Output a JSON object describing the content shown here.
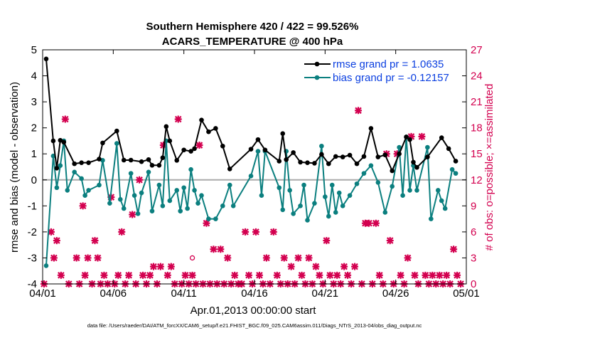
{
  "chart_data": {
    "type": "scatter",
    "title": "Southern Hemisphere 420 / 422 = 99.526%",
    "subtitle": "ACARS_TEMPERATURE @ 400 hPa",
    "xlabel": "Apr.01,2013 00:00:00 start",
    "ylabel": "rmse and bias (model - observation)",
    "y2label": "# of obs: o=possible; ×=assimilated",
    "footnote": "data file: /Users/raeder/DAI/ATM_forcXX/CAM6_setup/f.e21.FHIST_BGC.f09_025.CAM6assim.011/Diags_NTrS_2013-04/obs_diag_output.nc",
    "xlim": [
      0,
      30
    ],
    "ylim": [
      -4,
      5
    ],
    "y2lim": [
      0,
      27
    ],
    "x_ticks": [
      0,
      5,
      10,
      15,
      20,
      25,
      30
    ],
    "x_tick_labels": [
      "04/01",
      "04/06",
      "04/11",
      "04/16",
      "04/21",
      "04/26",
      "05/01"
    ],
    "y_ticks": [
      -4,
      -3,
      -2,
      -1,
      0,
      1,
      2,
      3,
      4,
      5
    ],
    "y_tick_labels": [
      "-4",
      "-3",
      "-2",
      "-1",
      "0",
      "1",
      "2",
      "3",
      "4",
      "5"
    ],
    "y2_ticks": [
      0,
      3,
      6,
      9,
      12,
      15,
      18,
      21,
      24,
      27
    ],
    "y2_tick_labels": [
      "0",
      "3",
      "6",
      "9",
      "12",
      "15",
      "18",
      "21",
      "24",
      "27"
    ],
    "legend": {
      "position": "top-right",
      "entries": [
        "rmse grand pr = 1.0635",
        "bias grand pr = -0.12157"
      ]
    },
    "colors": {
      "rmse": "#000000",
      "bias": "#0b7f7f",
      "obs": "#d3004f",
      "zero_line": "#aaaaaa",
      "legend_text": "#0b3fe0"
    },
    "series": [
      {
        "name": "rmse",
        "axis": "left",
        "values": [
          [
            0.25,
            4.65
          ],
          [
            0.75,
            1.5
          ],
          [
            1.0,
            0.45
          ],
          [
            1.25,
            1.52
          ],
          [
            1.5,
            1.45
          ],
          [
            2.25,
            0.62
          ],
          [
            2.75,
            0.66
          ],
          [
            3.25,
            0.66
          ],
          [
            4.0,
            0.8
          ],
          [
            4.25,
            1.42
          ],
          [
            5.25,
            1.88
          ],
          [
            5.75,
            0.76
          ],
          [
            6.25,
            0.76
          ],
          [
            7.0,
            0.7
          ],
          [
            7.5,
            0.78
          ],
          [
            7.75,
            0.56
          ],
          [
            8.25,
            0.56
          ],
          [
            8.5,
            0.85
          ],
          [
            8.75,
            2.05
          ],
          [
            9.0,
            1.5
          ],
          [
            9.5,
            0.75
          ],
          [
            10.0,
            1.15
          ],
          [
            10.5,
            1.1
          ],
          [
            10.75,
            1.2
          ],
          [
            11.25,
            2.3
          ],
          [
            11.75,
            1.85
          ],
          [
            12.25,
            1.98
          ],
          [
            12.75,
            1.3
          ],
          [
            13.25,
            0.42
          ],
          [
            14.75,
            1.18
          ],
          [
            15.25,
            1.55
          ],
          [
            15.75,
            1.15
          ],
          [
            16.75,
            0.72
          ],
          [
            17.0,
            1.78
          ],
          [
            17.25,
            0.78
          ],
          [
            17.75,
            1.05
          ],
          [
            18.25,
            0.68
          ],
          [
            18.75,
            0.66
          ],
          [
            19.25,
            0.64
          ],
          [
            19.75,
            0.98
          ],
          [
            20.25,
            0.62
          ],
          [
            20.75,
            0.9
          ],
          [
            21.25,
            0.88
          ],
          [
            21.75,
            0.95
          ],
          [
            22.25,
            0.62
          ],
          [
            22.75,
            0.9
          ],
          [
            23.25,
            1.98
          ],
          [
            23.75,
            0.88
          ],
          [
            24.25,
            0.96
          ],
          [
            24.75,
            0.35
          ],
          [
            25.25,
            1.0
          ],
          [
            25.75,
            1.65
          ],
          [
            26.0,
            1.55
          ],
          [
            26.25,
            0.68
          ],
          [
            26.5,
            0.48
          ],
          [
            27.25,
            0.88
          ],
          [
            28.25,
            1.62
          ],
          [
            28.75,
            1.2
          ],
          [
            29.25,
            0.72
          ]
        ]
      },
      {
        "name": "bias",
        "axis": "left",
        "values": [
          [
            0.25,
            -3.3
          ],
          [
            0.75,
            0.92
          ],
          [
            1.0,
            -0.3
          ],
          [
            1.25,
            0.55
          ],
          [
            1.5,
            1.5
          ],
          [
            1.75,
            -0.4
          ],
          [
            2.25,
            0.3
          ],
          [
            2.75,
            0.05
          ],
          [
            3.0,
            -0.6
          ],
          [
            3.25,
            -0.4
          ],
          [
            4.0,
            -0.2
          ],
          [
            4.25,
            0.75
          ],
          [
            4.75,
            -0.9
          ],
          [
            5.25,
            1.4
          ],
          [
            5.5,
            -0.75
          ],
          [
            5.75,
            -1.1
          ],
          [
            6.25,
            0.25
          ],
          [
            6.5,
            -0.6
          ],
          [
            6.75,
            -1.3
          ],
          [
            7.0,
            -0.5
          ],
          [
            7.5,
            0.3
          ],
          [
            7.75,
            -1.2
          ],
          [
            8.25,
            -0.2
          ],
          [
            8.5,
            -1.0
          ],
          [
            8.75,
            1.5
          ],
          [
            9.0,
            -0.8
          ],
          [
            9.5,
            -0.4
          ],
          [
            9.75,
            -1.2
          ],
          [
            10.0,
            -0.3
          ],
          [
            10.25,
            -1.1
          ],
          [
            10.5,
            0.4
          ],
          [
            10.75,
            -0.4
          ],
          [
            11.0,
            -0.9
          ],
          [
            11.25,
            -0.6
          ],
          [
            11.75,
            -1.5
          ],
          [
            12.25,
            -1.5
          ],
          [
            12.75,
            -1.0
          ],
          [
            13.25,
            -0.2
          ],
          [
            13.5,
            -1.0
          ],
          [
            14.75,
            0.15
          ],
          [
            15.25,
            1.1
          ],
          [
            15.5,
            -0.6
          ],
          [
            15.75,
            1.1
          ],
          [
            16.75,
            -0.3
          ],
          [
            17.0,
            -1.15
          ],
          [
            17.25,
            1.1
          ],
          [
            17.5,
            -0.4
          ],
          [
            17.75,
            -1.3
          ],
          [
            18.25,
            -1.0
          ],
          [
            18.5,
            -0.2
          ],
          [
            18.75,
            -1.55
          ],
          [
            19.25,
            -0.9
          ],
          [
            19.75,
            1.3
          ],
          [
            20.0,
            -0.65
          ],
          [
            20.25,
            -1.4
          ],
          [
            20.5,
            -0.2
          ],
          [
            20.75,
            -1.25
          ],
          [
            21.0,
            -0.5
          ],
          [
            21.25,
            -1.0
          ],
          [
            21.75,
            -0.6
          ],
          [
            22.25,
            -0.15
          ],
          [
            22.75,
            0.25
          ],
          [
            23.25,
            0.55
          ],
          [
            23.75,
            -0.1
          ],
          [
            24.25,
            -1.25
          ],
          [
            24.75,
            -0.25
          ],
          [
            25.25,
            1.25
          ],
          [
            25.5,
            -0.6
          ],
          [
            25.75,
            1.65
          ],
          [
            26.0,
            -0.4
          ],
          [
            26.25,
            0.55
          ],
          [
            26.5,
            -0.4
          ],
          [
            27.25,
            1.25
          ],
          [
            27.5,
            -1.5
          ],
          [
            28.0,
            -0.4
          ],
          [
            28.25,
            -0.8
          ],
          [
            28.5,
            -1.1
          ],
          [
            29.0,
            0.4
          ],
          [
            29.25,
            0.25
          ]
        ]
      },
      {
        "name": "obs_assimilated",
        "axis": "right",
        "values": [
          [
            0.1,
            0
          ],
          [
            0.6,
            6
          ],
          [
            0.8,
            3
          ],
          [
            1.0,
            5
          ],
          [
            1.3,
            1
          ],
          [
            1.6,
            19
          ],
          [
            1.85,
            0
          ],
          [
            2.4,
            3
          ],
          [
            2.6,
            0
          ],
          [
            2.85,
            9
          ],
          [
            3.0,
            1
          ],
          [
            3.2,
            3
          ],
          [
            3.5,
            0
          ],
          [
            3.7,
            5
          ],
          [
            3.9,
            3
          ],
          [
            4.1,
            0
          ],
          [
            4.35,
            1
          ],
          [
            4.6,
            0
          ],
          [
            4.85,
            10
          ],
          [
            5.1,
            0
          ],
          [
            5.35,
            1
          ],
          [
            5.6,
            6
          ],
          [
            5.85,
            0
          ],
          [
            6.1,
            1
          ],
          [
            6.35,
            8
          ],
          [
            6.6,
            0
          ],
          [
            6.85,
            12
          ],
          [
            7.1,
            1
          ],
          [
            7.35,
            0
          ],
          [
            7.6,
            1
          ],
          [
            7.85,
            2
          ],
          [
            8.1,
            0
          ],
          [
            8.35,
            2
          ],
          [
            8.55,
            16
          ],
          [
            8.85,
            1
          ],
          [
            9.1,
            2
          ],
          [
            9.35,
            0
          ],
          [
            9.6,
            19
          ],
          [
            9.85,
            0
          ],
          [
            10.1,
            1
          ],
          [
            10.35,
            0
          ],
          [
            10.6,
            1
          ],
          [
            10.85,
            0
          ],
          [
            11.1,
            16
          ],
          [
            11.35,
            0
          ],
          [
            11.6,
            7
          ],
          [
            11.85,
            0
          ],
          [
            12.1,
            4
          ],
          [
            12.35,
            0
          ],
          [
            12.6,
            4
          ],
          [
            12.85,
            0
          ],
          [
            13.1,
            3
          ],
          [
            13.35,
            0
          ],
          [
            13.6,
            1
          ],
          [
            13.85,
            0
          ],
          [
            14.1,
            0
          ],
          [
            14.35,
            6
          ],
          [
            14.6,
            1
          ],
          [
            14.85,
            0
          ],
          [
            15.1,
            6
          ],
          [
            15.35,
            1
          ],
          [
            15.6,
            0
          ],
          [
            15.85,
            3
          ],
          [
            16.1,
            0
          ],
          [
            16.35,
            6
          ],
          [
            16.6,
            1
          ],
          [
            16.85,
            0
          ],
          [
            17.1,
            3
          ],
          [
            17.35,
            0
          ],
          [
            17.6,
            2
          ],
          [
            17.85,
            0
          ],
          [
            18.1,
            3
          ],
          [
            18.35,
            1
          ],
          [
            18.6,
            0
          ],
          [
            18.85,
            3
          ],
          [
            19.1,
            0
          ],
          [
            19.35,
            2
          ],
          [
            19.6,
            1
          ],
          [
            19.85,
            0
          ],
          [
            20.1,
            5
          ],
          [
            20.35,
            1
          ],
          [
            20.6,
            0
          ],
          [
            20.85,
            1
          ],
          [
            21.1,
            0
          ],
          [
            21.35,
            2
          ],
          [
            21.6,
            1
          ],
          [
            21.85,
            0
          ],
          [
            22.1,
            2
          ],
          [
            22.35,
            20
          ],
          [
            22.6,
            0
          ],
          [
            22.85,
            7
          ],
          [
            23.1,
            7
          ],
          [
            23.35,
            0
          ],
          [
            23.6,
            7
          ],
          [
            23.85,
            1
          ],
          [
            24.1,
            0
          ],
          [
            24.35,
            15
          ],
          [
            24.6,
            5
          ],
          [
            24.85,
            0
          ],
          [
            25.1,
            15
          ],
          [
            25.35,
            1
          ],
          [
            25.6,
            0
          ],
          [
            25.85,
            3
          ],
          [
            26.1,
            17
          ],
          [
            26.35,
            1
          ],
          [
            26.6,
            0
          ],
          [
            26.85,
            17
          ],
          [
            27.1,
            1
          ],
          [
            27.35,
            0
          ],
          [
            27.6,
            1
          ],
          [
            27.85,
            0
          ],
          [
            28.1,
            1
          ],
          [
            28.35,
            0
          ],
          [
            28.6,
            1
          ],
          [
            28.85,
            0
          ],
          [
            29.1,
            4
          ],
          [
            29.35,
            1
          ],
          [
            29.6,
            0
          ]
        ]
      },
      {
        "name": "obs_possible",
        "axis": "right",
        "values": [
          [
            10.6,
            3
          ]
        ]
      }
    ]
  }
}
